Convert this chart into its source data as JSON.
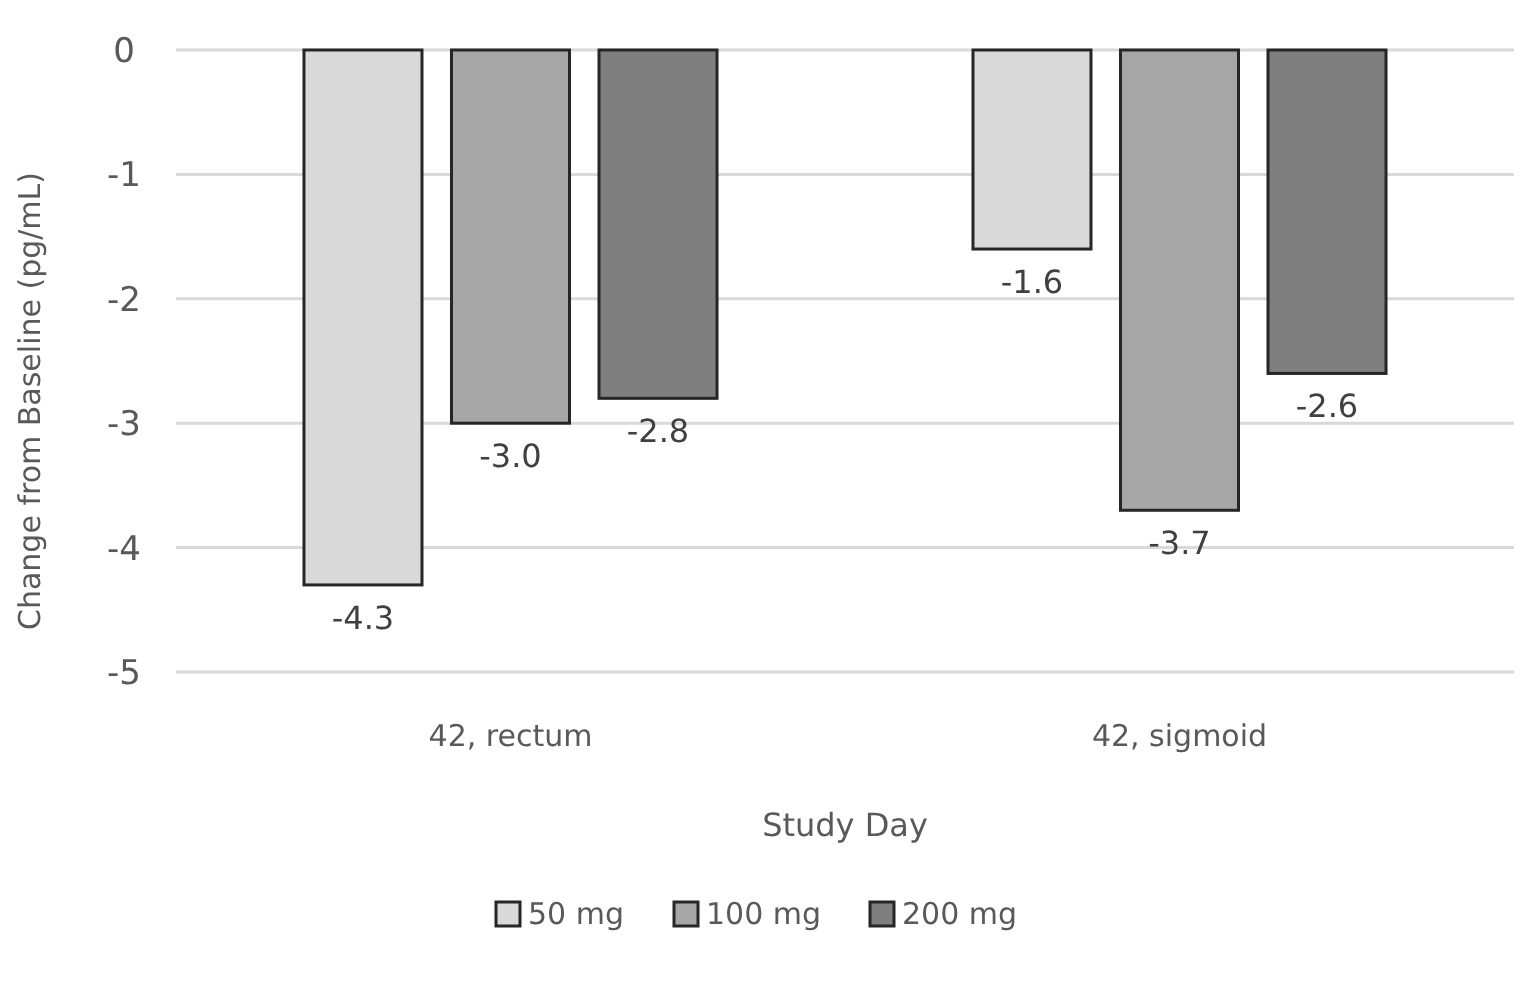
{
  "chart_data": {
    "type": "bar",
    "xlabel": "Study Day",
    "ylabel": "Change from Baseline (pg/mL)",
    "categories": [
      "42, rectum",
      "42, sigmoid"
    ],
    "series": [
      {
        "name": "50 mg",
        "color": "#d9d9d9",
        "values": [
          -4.3,
          -1.6
        ]
      },
      {
        "name": "100 mg",
        "color": "#a6a6a6",
        "values": [
          -3.0,
          -3.7
        ]
      },
      {
        "name": "200 mg",
        "color": "#7f7f7f",
        "values": [
          -2.8,
          -2.6
        ]
      }
    ],
    "ylim": [
      -5,
      0
    ],
    "yticks": [
      0,
      {
        "value": -1,
        "label": "-1"
      },
      {
        "value": -2,
        "label": "-2"
      },
      {
        "value": -3,
        "label": "-3"
      },
      {
        "value": -4,
        "label": "-4"
      },
      {
        "value": -5,
        "label": "-5"
      }
    ],
    "grid": "y",
    "legend": "bottom",
    "value_labels": [
      [
        "-4.3",
        "-1.6"
      ],
      [
        "-3.0",
        "-3.7"
      ],
      [
        "-2.8",
        "-2.6"
      ]
    ]
  }
}
